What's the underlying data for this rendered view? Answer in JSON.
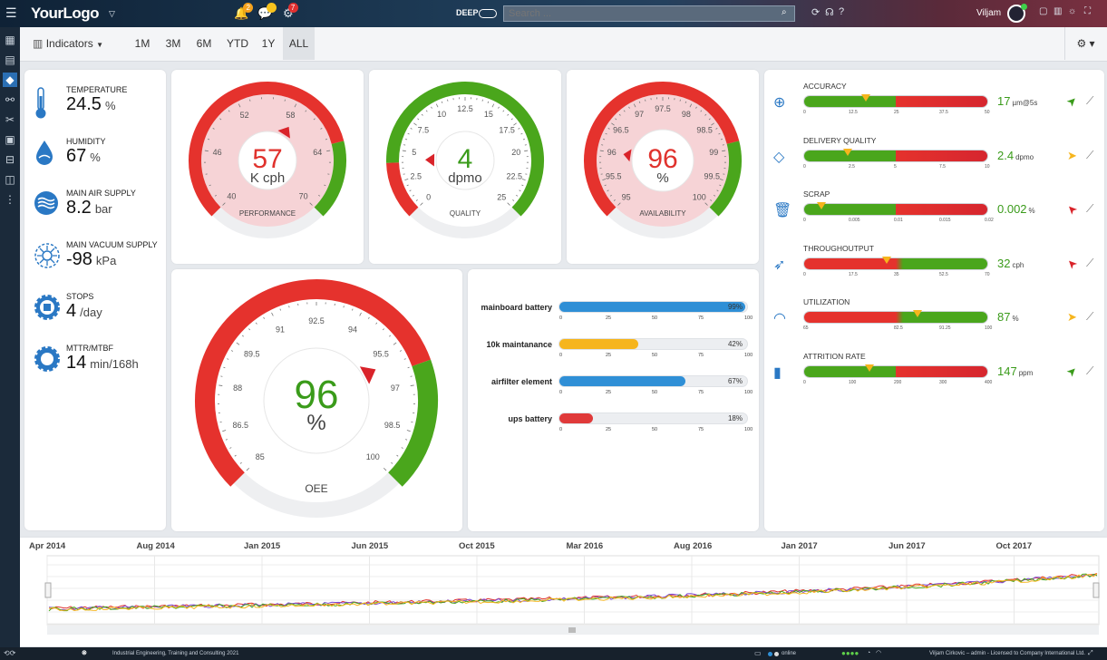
{
  "topbar": {
    "logo": "YourLogo",
    "deep": "DEEP",
    "search_placeholder": "Search ...",
    "user": "Viljam",
    "notif_bell": "2",
    "notif_chat": "",
    "notif_alert": "7"
  },
  "toolbar": {
    "indicators": "Indicators",
    "ranges": [
      "1M",
      "3M",
      "6M",
      "YTD",
      "1Y",
      "ALL"
    ],
    "active": "ALL"
  },
  "sensors": [
    {
      "label": "TEMPERATURE",
      "value": "24.5",
      "unit": "%",
      "icon": "thermometer-icon"
    },
    {
      "label": "HUMIDITY",
      "value": "67",
      "unit": "%",
      "icon": "drop-icon"
    },
    {
      "label": "MAIN AIR SUPPLY",
      "value": "8.2",
      "unit": "bar",
      "icon": "air-icon"
    },
    {
      "label": "MAIN VACUUM SUPPLY",
      "value": "-98",
      "unit": "kPa",
      "icon": "vacuum-icon"
    },
    {
      "label": "STOPS",
      "value": "4",
      "unit": "/day",
      "icon": "gear-stop-icon"
    },
    {
      "label": "MTTR/MTBF",
      "value": "14",
      "unit": "min/168h",
      "icon": "gear-icon"
    }
  ],
  "gauges": {
    "performance": {
      "value": "57",
      "unit": "K cph",
      "label": "PERFORMANCE",
      "ticks": [
        "40",
        "46",
        "52",
        "58",
        "64",
        "70"
      ]
    },
    "quality": {
      "value": "4",
      "unit": "dpmo",
      "label": "QUALITY",
      "ticks": [
        "0",
        "2.5",
        "5",
        "7.5",
        "10",
        "12.5",
        "15",
        "17.5",
        "20",
        "22.5",
        "25"
      ]
    },
    "availability": {
      "value": "96",
      "unit": "%",
      "label": "AVAILABILITY",
      "ticks": [
        "95",
        "95.5",
        "96",
        "96.5",
        "97",
        "97.5",
        "98",
        "98.5",
        "99",
        "99.5",
        "100"
      ]
    },
    "oee": {
      "value": "96",
      "unit": "%",
      "label": "OEE",
      "ticks": [
        "85",
        "86.5",
        "88",
        "89.5",
        "91",
        "92.5",
        "94",
        "95.5",
        "97",
        "98.5",
        "100"
      ]
    }
  },
  "bars": [
    {
      "label": "mainboard battery",
      "pct": "99%",
      "value": 99,
      "color": "#2f8fd6"
    },
    {
      "label": "10k maintanance",
      "pct": "42%",
      "value": 42,
      "color": "#f6b51d"
    },
    {
      "label": "airfilter element",
      "pct": "67%",
      "value": 67,
      "color": "#2f8fd6"
    },
    {
      "label": "ups battery",
      "pct": "18%",
      "value": 18,
      "color": "#e03a3a"
    }
  ],
  "bar_axis": [
    "0",
    "25",
    "50",
    "75",
    "100"
  ],
  "kpis": [
    {
      "label": "ACCURACY",
      "value": "17",
      "unit": "µm@5s",
      "icon": "crosshair-icon",
      "axis": [
        "0",
        "12.5",
        "25",
        "37.5",
        "50"
      ],
      "marker": 0.34,
      "trend": "up"
    },
    {
      "label": "DELIVERY QUALITY",
      "value": "2.4",
      "unit": "dpmo",
      "icon": "diamond-icon",
      "axis": [
        "0",
        "2.5",
        "5",
        "7.5",
        "10"
      ],
      "marker": 0.24,
      "trend": "flat"
    },
    {
      "label": "SCRAP",
      "value": "0.002",
      "unit": "%",
      "icon": "trash-icon",
      "axis": [
        "0",
        "0.005",
        "0.01",
        "0.015",
        "0.02"
      ],
      "marker": 0.1,
      "trend": "down"
    },
    {
      "label": "THROUGHOUTPUT",
      "value": "32",
      "unit": "cph",
      "icon": "rocket-icon",
      "axis": [
        "0",
        "17.5",
        "35",
        "52.5",
        "70"
      ],
      "marker": 0.45,
      "trend": "down"
    },
    {
      "label": "UTILIZATION",
      "value": "87",
      "unit": "%",
      "icon": "speedometer-icon",
      "axis": [
        "65",
        "",
        "82.5",
        "91.25",
        "100"
      ],
      "marker": 0.62,
      "trend": "flat"
    },
    {
      "label": "ATTRITION RATE",
      "value": "147",
      "unit": "ppm",
      "icon": "chart-icon",
      "axis": [
        "0",
        "100",
        "200",
        "300",
        "400"
      ],
      "marker": 0.36,
      "trend": "up"
    }
  ],
  "timeline": {
    "labels": [
      "Apr 2014",
      "Aug 2014",
      "Jan 2015",
      "Jun 2015",
      "Oct 2015",
      "Mar 2016",
      "Aug 2016",
      "Jan 2017",
      "Jun 2017",
      "Oct 2017"
    ]
  },
  "footer": {
    "credit": "Industrial Engineering, Training and Consulting 2021",
    "status": "online",
    "license": "Viljam Cirkovic – admin - Licensed to Company International Ltd."
  }
}
